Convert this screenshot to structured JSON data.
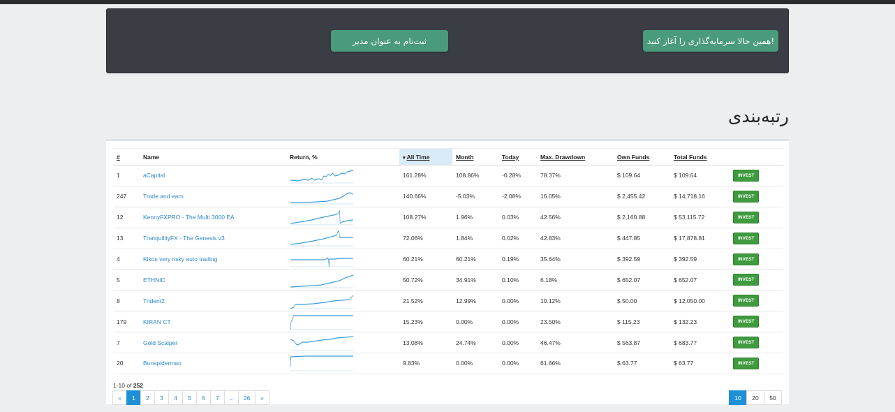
{
  "banner": {
    "manager_signup": "ثبت‌نام به عنوان مدیر",
    "start_investing": "همین حالا سرمایه‌گذاری را آغاز کنید!"
  },
  "ranking_title": "رتبه‌بندی",
  "table": {
    "headers": {
      "rank": "#",
      "name": "Name",
      "return": "Return, %",
      "all_time": "All Time",
      "month": "Month",
      "today": "Today",
      "max_drawdown": "Max. Drawdown",
      "own_funds": "Own Funds",
      "total_funds": "Total Funds"
    },
    "invest_label": "INVEST",
    "rows": [
      {
        "rank": "1",
        "name": "aCapital",
        "all_time": "161.28%",
        "month": "108.86%",
        "today": "-0.28%",
        "drawdown": "78.37%",
        "own": "$ 109.64",
        "total": "$ 109.64"
      },
      {
        "rank": "247",
        "name": "Trade and earn",
        "all_time": "140.66%",
        "month": "-5.03%",
        "today": "-2.08%",
        "drawdown": "16.05%",
        "own": "$ 2,455.42",
        "total": "$ 14,718.16"
      },
      {
        "rank": "12",
        "name": "KennyFXPRO - The Multi 3000 EA",
        "all_time": "108.27%",
        "month": "1.96%",
        "today": "0.03%",
        "drawdown": "42.56%",
        "own": "$ 2,160.88",
        "total": "$ 53,115.72"
      },
      {
        "rank": "13",
        "name": "TranquilityFX - The Genesis v3",
        "all_time": "72.06%",
        "month": "1.84%",
        "today": "0.02%",
        "drawdown": "42.83%",
        "own": "$ 447.85",
        "total": "$ 17,878.81"
      },
      {
        "rank": "4",
        "name": "Kikos very risky auto trading",
        "all_time": "60.21%",
        "month": "60.21%",
        "today": "0.19%",
        "drawdown": "35.64%",
        "own": "$ 392.59",
        "total": "$ 392.59"
      },
      {
        "rank": "5",
        "name": "ETHNIC",
        "all_time": "50.72%",
        "month": "34.91%",
        "today": "0.10%",
        "drawdown": "6.18%",
        "own": "$ 652.07",
        "total": "$ 652.07"
      },
      {
        "rank": "8",
        "name": "Trident2",
        "all_time": "21.52%",
        "month": "12.99%",
        "today": "0.00%",
        "drawdown": "10.12%",
        "own": "$ 50.00",
        "total": "$ 12,050.00"
      },
      {
        "rank": "179",
        "name": "KIRAN CT",
        "all_time": "15.23%",
        "month": "0.00%",
        "today": "0.00%",
        "drawdown": "23.50%",
        "own": "$ 115.23",
        "total": "$ 132.23"
      },
      {
        "rank": "7",
        "name": "Gold Scalper",
        "all_time": "13.08%",
        "month": "24.74%",
        "today": "0.00%",
        "drawdown": "46.47%",
        "own": "$ 563.87",
        "total": "$ 683.77"
      },
      {
        "rank": "20",
        "name": "Bunspiderman",
        "all_time": "9.83%",
        "month": "0.00%",
        "today": "0.00%",
        "drawdown": "61.66%",
        "own": "$ 63.77",
        "total": "$ 63.77"
      }
    ]
  },
  "pagination": {
    "range_text": "1-10 of",
    "total": "252",
    "prev": "«",
    "next": "»",
    "pages": [
      "1",
      "2",
      "3",
      "4",
      "5",
      "6",
      "7",
      "...",
      "26"
    ],
    "active_page": "1",
    "page_sizes": [
      "10",
      "20",
      "50"
    ],
    "active_size": "10"
  },
  "colors": {
    "accent": "#1e91d6",
    "invest_green": "#3e9b3e",
    "banner_button": "#4a9a7c",
    "link": "#2e86c9"
  }
}
